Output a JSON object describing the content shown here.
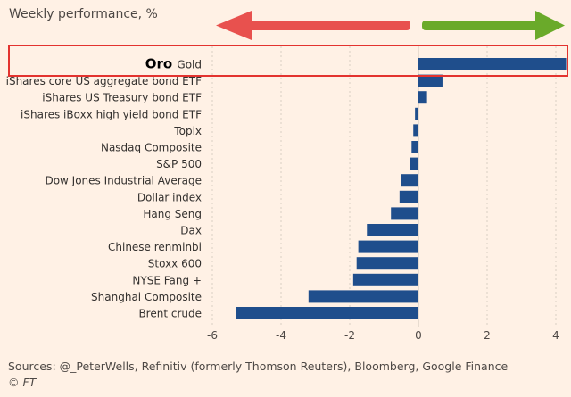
{
  "colors": {
    "background": "#fff1e5",
    "bar": "#1f4e8c",
    "grid": "#d9cfc3",
    "left_arrow": "#e8514e",
    "right_arrow": "#6aaa2a",
    "highlight_box": "#e3332f"
  },
  "chart_data": {
    "type": "bar",
    "orientation": "horizontal",
    "title": "Weekly performance, %",
    "categories": [
      "Gold",
      "iShares core US aggregate bond ETF",
      "iShares US Treasury bond ETF",
      "iShares iBoxx high yield bond ETF",
      "Topix",
      "Nasdaq Composite",
      "S&P 500",
      "Dow Jones Industrial Average",
      "Dollar index",
      "Hang Seng",
      "Dax",
      "Chinese renminbi",
      "Stoxx 600",
      "NYSE Fang +",
      "Shanghai Composite",
      "Brent crude"
    ],
    "values": [
      4.3,
      0.7,
      0.25,
      -0.1,
      -0.15,
      -0.2,
      -0.25,
      -0.5,
      -0.55,
      -0.8,
      -1.5,
      -1.75,
      -1.8,
      -1.9,
      -3.2,
      -5.3
    ],
    "xlim": [
      -6,
      4.3
    ],
    "xticks": [
      -6,
      -4,
      -2,
      0,
      2,
      4
    ],
    "xtick_labels": [
      "-6",
      "-4",
      "-2",
      "0",
      "2",
      "4"
    ],
    "highlight": {
      "category": "Gold",
      "annotation": "Oro"
    }
  },
  "footer": {
    "sources": "Sources: @_PeterWells, Refinitiv (formerly Thomson Reuters), Bloomberg, Google Finance",
    "copyright": "© FT"
  }
}
